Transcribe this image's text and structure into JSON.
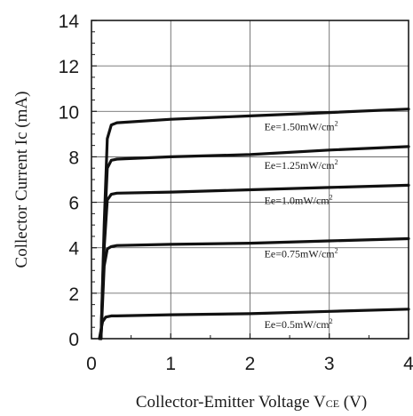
{
  "chart_data": {
    "type": "line",
    "xlabel": "Collector-Emitter Voltage V",
    "xlabel_sub": "CE",
    "xlabel_unit": " (V)",
    "ylabel": "Collector Current Ic (mA)",
    "xlim": [
      0,
      4
    ],
    "ylim": [
      0,
      14
    ],
    "x_ticks": [
      "0",
      "1",
      "2",
      "3",
      "4"
    ],
    "y_ticks": [
      "0",
      "2",
      "4",
      "6",
      "8",
      "10",
      "12",
      "14"
    ],
    "grid": true,
    "series": [
      {
        "label_main": "Ee=1.50mW/cm",
        "label_sup": "2",
        "x": [
          0.12,
          0.16,
          0.2,
          0.25,
          0.32,
          1.0,
          2.0,
          3.0,
          4.0
        ],
        "y": [
          0,
          5.0,
          8.8,
          9.4,
          9.5,
          9.65,
          9.8,
          9.95,
          10.1
        ]
      },
      {
        "label_main": "Ee=1.25mW/cm",
        "label_sup": "2",
        "x": [
          0.12,
          0.16,
          0.2,
          0.25,
          0.32,
          1.0,
          2.0,
          3.0,
          4.0
        ],
        "y": [
          0,
          4.5,
          7.5,
          7.85,
          7.9,
          8.0,
          8.1,
          8.3,
          8.45
        ]
      },
      {
        "label_main": "Ee=1.0mW/cm",
        "label_sup": "2",
        "x": [
          0.12,
          0.16,
          0.2,
          0.25,
          0.32,
          1.0,
          2.0,
          3.0,
          4.0
        ],
        "y": [
          0,
          4.0,
          6.1,
          6.35,
          6.4,
          6.45,
          6.55,
          6.65,
          6.75
        ]
      },
      {
        "label_main": "Ee=0.75mW/cm",
        "label_sup": "2",
        "x": [
          0.12,
          0.16,
          0.2,
          0.25,
          0.32,
          1.0,
          2.0,
          3.0,
          4.0
        ],
        "y": [
          0,
          3.2,
          3.95,
          4.05,
          4.1,
          4.15,
          4.2,
          4.3,
          4.4
        ]
      },
      {
        "label_main": "Ee=0.5mW/cm",
        "label_sup": "2",
        "x": [
          0.1,
          0.14,
          0.18,
          0.25,
          0.32,
          1.0,
          2.0,
          3.0,
          4.0
        ],
        "y": [
          0,
          0.75,
          0.95,
          1.0,
          1.0,
          1.05,
          1.1,
          1.2,
          1.3
        ]
      }
    ]
  }
}
